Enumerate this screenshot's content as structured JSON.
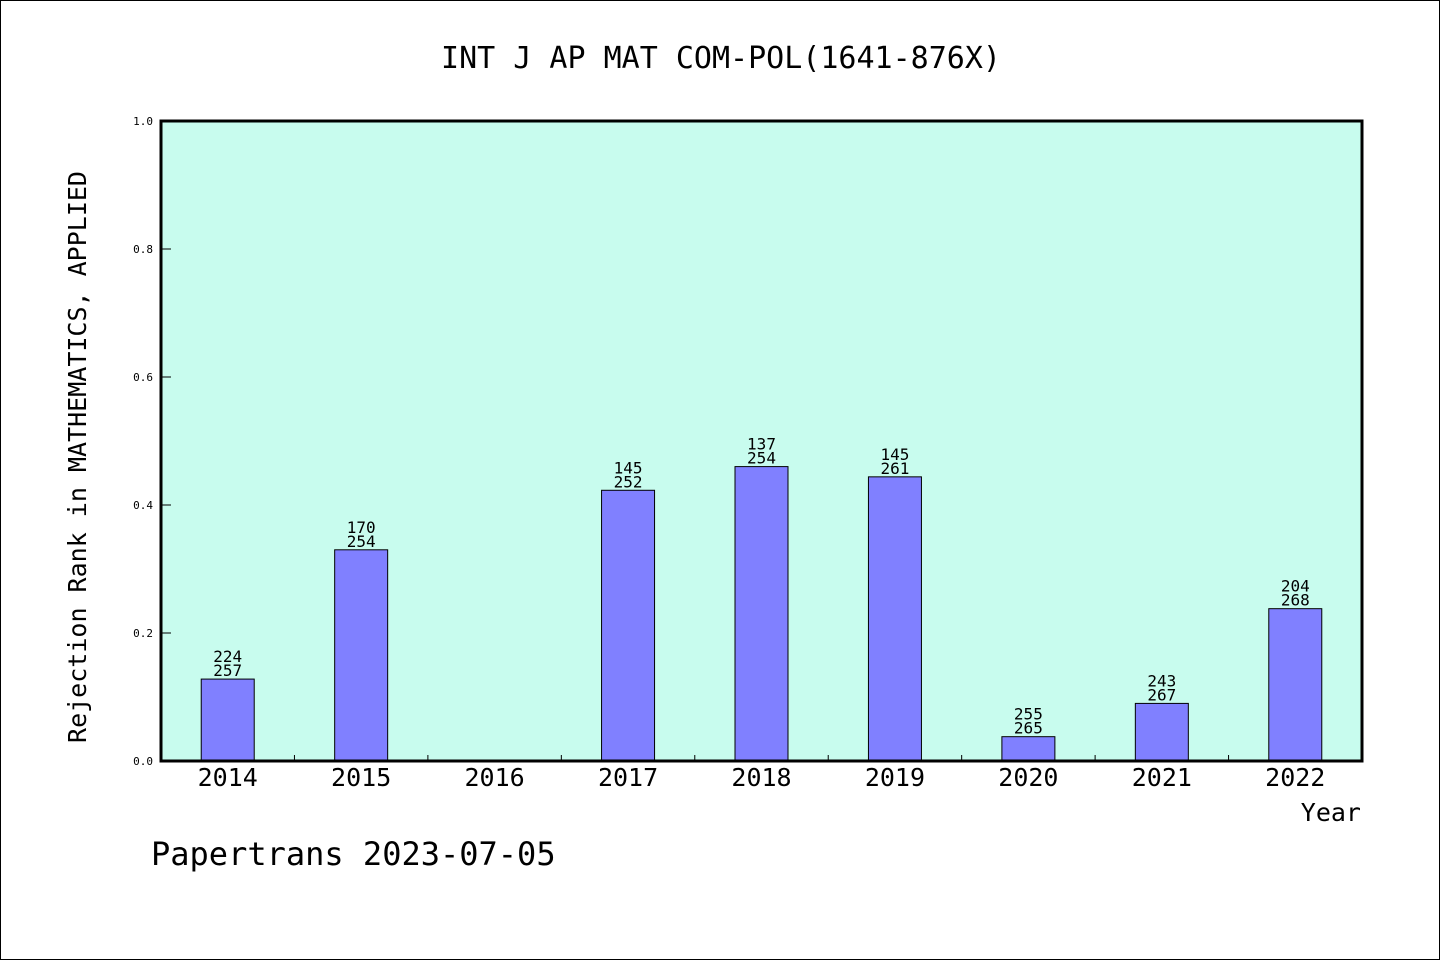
{
  "chart_data": {
    "type": "bar",
    "title": "INT J AP MAT COM-POL(1641-876X)",
    "xlabel": "Year",
    "ylabel": "Rejection Rank in MATHEMATICS, APPLIED",
    "categories": [
      "2014",
      "2015",
      "2016",
      "2017",
      "2018",
      "2019",
      "2020",
      "2021",
      "2022"
    ],
    "values": [
      0.128,
      0.33,
      null,
      0.423,
      0.46,
      0.444,
      0.038,
      0.09,
      0.238
    ],
    "bar_labels": [
      [
        "224",
        "257"
      ],
      [
        "170",
        "254"
      ],
      null,
      [
        "145",
        "252"
      ],
      [
        "137",
        "254"
      ],
      [
        "145",
        "261"
      ],
      [
        "255",
        "265"
      ],
      [
        "243",
        "267"
      ],
      [
        "204",
        "268"
      ]
    ],
    "ylim": [
      0,
      1.0
    ],
    "yticks": [
      "0.0",
      "0.2",
      "0.4",
      "0.6",
      "0.8",
      "1.0"
    ],
    "grid": false,
    "colors": {
      "plot_background": "#c8fcee",
      "bar_fill": "#8080ff",
      "axis": "#000000"
    }
  },
  "footer": "Papertrans 2023-07-05"
}
